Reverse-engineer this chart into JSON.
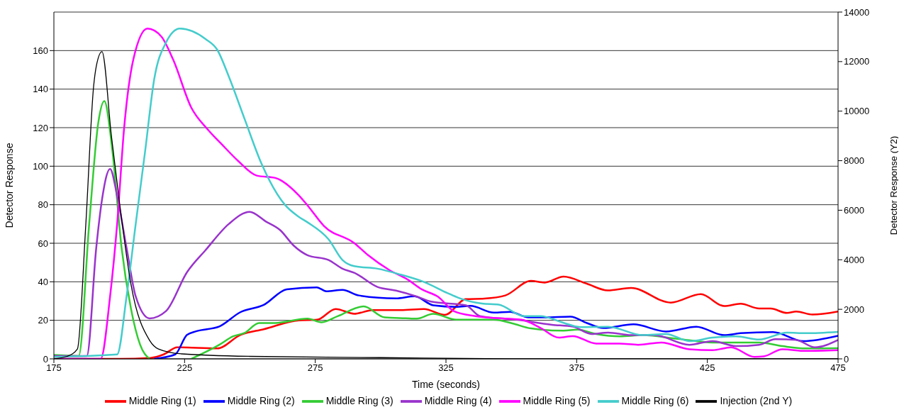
{
  "chart_data": {
    "type": "line",
    "xlabel": "Time (seconds)",
    "ylabel": "Detector Response",
    "y2label": "Detector Response (Y2)",
    "xlim": [
      175,
      475
    ],
    "xticks": [
      175,
      225,
      275,
      325,
      375,
      425,
      475
    ],
    "ylim": [
      0,
      180
    ],
    "yticks": [
      0,
      20,
      40,
      60,
      80,
      100,
      120,
      140,
      160
    ],
    "y2lim": [
      0,
      14000
    ],
    "y2ticks": [
      0,
      2000,
      4000,
      6000,
      8000,
      10000,
      12000,
      14000
    ],
    "grid": "y",
    "legend": "bottom",
    "series": [
      {
        "name": "Middle Ring (1)",
        "color": "#ff0000",
        "x": [
          175,
          200,
          212,
          217,
          222.2,
          237.5,
          246.3,
          255.3,
          268.7,
          275.7,
          282.8,
          289.9,
          297,
          307.7,
          316.6,
          324.6,
          332.6,
          339.7,
          347.7,
          357.5,
          362.8,
          370,
          378.9,
          386.9,
          395.8,
          411,
          422.5,
          431.4,
          437.7,
          444.8,
          449.2,
          455.5,
          459,
          465.2,
          475
        ],
        "values": [
          0,
          0,
          0.5,
          2.3,
          6,
          5.4,
          12.4,
          15.4,
          20,
          20.3,
          25.9,
          23.4,
          25.3,
          25.3,
          25.9,
          22.8,
          31,
          31.3,
          32.9,
          40.5,
          39.6,
          42.7,
          39,
          35.5,
          36.8,
          29.2,
          33.6,
          27.4,
          28.6,
          26.1,
          26.1,
          23.8,
          24.6,
          23,
          24.6
        ]
      },
      {
        "name": "Middle Ring (2)",
        "color": "#0000ff",
        "x": [
          213.4,
          221.4,
          225.9,
          229.4,
          238.3,
          246.3,
          255.3,
          264.1,
          275.6,
          279.2,
          285.4,
          291.7,
          305.9,
          313,
          320.1,
          329,
          334.4,
          343.3,
          349.5,
          356.6,
          362.8,
          372.6,
          378.9,
          385.2,
          396.7,
          409.2,
          420.8,
          431.4,
          437.7,
          450.1,
          461.7,
          475
        ],
        "values": [
          0,
          2.3,
          12.4,
          14.3,
          16.8,
          24.2,
          28,
          36.1,
          37.1,
          35.1,
          35.8,
          32.9,
          31.4,
          32.5,
          27.8,
          27,
          27.5,
          24,
          24.4,
          21.5,
          21.5,
          21.9,
          18.6,
          16,
          17.9,
          14.2,
          16.7,
          12.3,
          13.3,
          13.9,
          9.2,
          12
        ]
      },
      {
        "name": "Middle Ring (3)",
        "color": "#33cc33",
        "x": [
          175,
          184.5,
          188.5,
          192,
          194.3,
          197.4,
          200.9,
          204.5,
          208,
          211.6,
          220,
          227.6,
          238.3,
          243.6,
          248,
          253.5,
          259.6,
          272,
          277.4,
          283.7,
          293.5,
          301.5,
          309.5,
          313.9,
          320.1,
          329,
          343.3,
          350.4,
          357.5,
          370,
          375.3,
          382.5,
          391.4,
          400.3,
          413.6,
          427,
          444.8,
          453.7,
          462.6,
          475
        ],
        "values": [
          2,
          1.5,
          70,
          122.7,
          133.8,
          107.7,
          57.6,
          26,
          7.3,
          0,
          null,
          0,
          7.3,
          11.7,
          13.5,
          18.6,
          18.6,
          20.9,
          19,
          22.2,
          27.2,
          21.5,
          21.1,
          20.9,
          23.4,
          20.3,
          20.3,
          18.4,
          15.8,
          14.6,
          15.2,
          12.9,
          11.7,
          12.3,
          10.4,
          8.5,
          8.5,
          6.6,
          5.4,
          5.5
        ]
      },
      {
        "name": "Middle Ring (4)",
        "color": "#9933cc",
        "x": [
          175,
          187.6,
          191.2,
          193.4,
          196.5,
          199.2,
          202.8,
          206.3,
          211.6,
          217.9,
          225.9,
          233,
          241.9,
          249.9,
          256.1,
          261.5,
          266.8,
          272,
          280.1,
          285.4,
          289.9,
          298.8,
          305.9,
          313.9,
          319.3,
          332.6,
          338,
          352.2,
          365.5,
          373.6,
          380.7,
          387,
          395.8,
          404.7,
          418.1,
          427,
          435.9,
          444.8,
          451,
          459,
          466.1,
          475
        ],
        "values": [
          1.5,
          1.5,
          57.6,
          82.6,
          98.6,
          84.6,
          57.6,
          32.4,
          21,
          24.8,
          44.9,
          56.4,
          70,
          76.3,
          71.3,
          66.9,
          58.7,
          53.8,
          51.3,
          46.8,
          44.7,
          37.3,
          35.4,
          32.3,
          29.7,
          27.8,
          22.2,
          20.3,
          17.7,
          16.7,
          12.9,
          13.6,
          12.3,
          12.3,
          7.3,
          9.2,
          6.6,
          7.3,
          10.2,
          9.8,
          6,
          9.8
        ]
      },
      {
        "name": "Middle Ring (5)",
        "color": "#ff00ff",
        "x": [
          175,
          192.9,
          196.5,
          199.2,
          201.9,
          205.4,
          210.8,
          216.1,
          220.6,
          227.6,
          233.9,
          239.2,
          245.5,
          252.6,
          259.7,
          268.6,
          272,
          278.3,
          289.9,
          295.2,
          303.2,
          310.4,
          315.7,
          321.9,
          328.1,
          336.2,
          347.7,
          353.9,
          361.1,
          368.2,
          373.5,
          382.5,
          391.4,
          398.5,
          407.4,
          418.1,
          427,
          434.1,
          443,
          446.6,
          453.7,
          462.6,
          475
        ],
        "values": [
          0,
          0,
          32.4,
          70,
          120.2,
          155.4,
          171.4,
          167.3,
          155.4,
          130.3,
          119,
          111.4,
          102.7,
          95.1,
          93.9,
          85,
          79.7,
          69,
          60.1,
          53.8,
          46.2,
          41.1,
          36.1,
          32.3,
          24.7,
          22.2,
          20.9,
          20.3,
          16.1,
          11,
          11.8,
          7.9,
          7.9,
          7.3,
          8.5,
          5,
          4.5,
          6,
          1,
          1.3,
          5,
          4.1,
          4.5
        ]
      },
      {
        "name": "Middle Ring (6)",
        "color": "#44cccc",
        "x": [
          175,
          199.2,
          202.8,
          206.3,
          209.9,
          213.4,
          217.9,
          223.2,
          233,
          237.5,
          241.9,
          248.1,
          254.4,
          263.3,
          268.6,
          272,
          280.1,
          285.4,
          289.9,
          298.8,
          307.7,
          316.6,
          325.5,
          329.9,
          338.8,
          345.1,
          354.8,
          361.1,
          370,
          376.2,
          387,
          400.3,
          409.2,
          418.1,
          427,
          435.9,
          444.8,
          455.5,
          462.6,
          475
        ],
        "values": [
          1,
          2.3,
          32.4,
          70,
          107.7,
          145.3,
          164.2,
          171.4,
          166,
          160.4,
          146.6,
          124,
          101.4,
          80.1,
          73.8,
          70.9,
          62,
          51.3,
          48.1,
          46.8,
          43.7,
          39.9,
          34.2,
          31.6,
          28.7,
          28.2,
          22.2,
          22.2,
          18.7,
          16.5,
          16.7,
          12.3,
          12.9,
          9.2,
          11,
          11.7,
          10,
          13.6,
          13.3,
          14
        ]
      },
      {
        "name": "Injection (2nd Y)",
        "color": "#000000",
        "axis": "y2",
        "x": [
          175,
          180,
          184,
          187.2,
          190.2,
          191.2,
          193.4,
          197,
          200,
          204.5,
          211.6,
          215,
          224,
          250,
          300,
          350,
          400,
          475
        ],
        "values": [
          0,
          100,
          400,
          5400,
          11000,
          11800,
          12400,
          9000,
          6400,
          3000,
          750,
          400,
          200,
          100,
          50,
          0,
          0,
          0
        ]
      }
    ]
  }
}
